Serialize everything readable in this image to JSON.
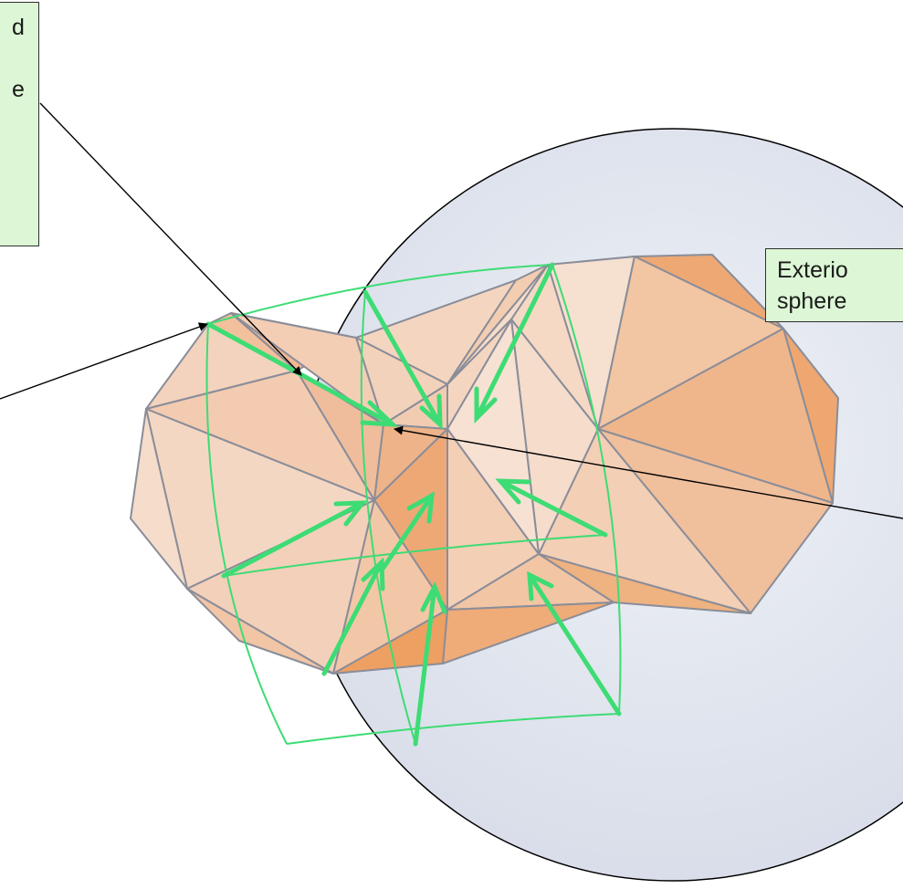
{
  "callouts": {
    "left": {
      "lines": [
        "d",
        "",
        "e"
      ]
    },
    "right": {
      "lines": [
        "Exterio",
        "sphere"
      ]
    }
  },
  "colors": {
    "sphere_fill": "#dfe4ee",
    "sphere_stroke": "#000000",
    "mesh_fill": "#f1c7a6",
    "mesh_dark": "#efa771",
    "mesh_edge": "#8a8d99",
    "green": "#3ddc74",
    "callout_bg": "#ddf7d6"
  }
}
